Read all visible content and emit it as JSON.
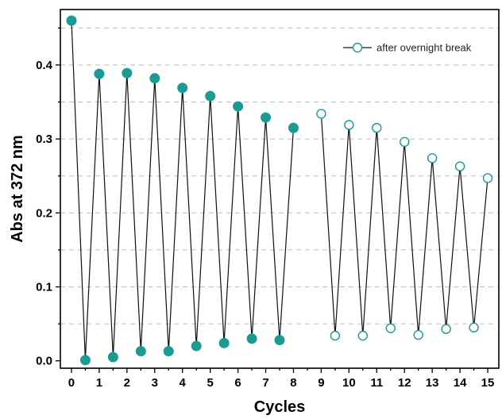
{
  "chart_data": {
    "type": "line",
    "xlabel": "Cycles",
    "ylabel": "Abs at 372 nm",
    "xlim": [
      -0.4,
      15.4
    ],
    "ylim": [
      -0.01,
      0.475
    ],
    "x_ticks": [
      0,
      1,
      2,
      3,
      4,
      5,
      6,
      7,
      8,
      9,
      10,
      11,
      12,
      13,
      14,
      15
    ],
    "y_ticks": [
      0.0,
      0.1,
      0.2,
      0.3,
      0.4
    ],
    "y_tick_labels": [
      "0.0",
      "0.1",
      "0.2",
      "0.3",
      "0.4"
    ],
    "grid": "horizontal dashed",
    "legend_position": "top-right",
    "colors": {
      "filled": "#1a9b93",
      "line": "#111111"
    },
    "series": [
      {
        "name": "",
        "marker": "filled-circle",
        "points": [
          [
            0,
            0.46
          ],
          [
            0.5,
            0.001
          ],
          [
            1,
            0.388
          ],
          [
            1.5,
            0.005
          ],
          [
            2,
            0.389
          ],
          [
            2.5,
            0.013
          ],
          [
            3,
            0.382
          ],
          [
            3.5,
            0.013
          ],
          [
            4,
            0.369
          ],
          [
            4.5,
            0.02
          ],
          [
            5,
            0.358
          ],
          [
            5.5,
            0.024
          ],
          [
            6,
            0.344
          ],
          [
            6.5,
            0.03
          ],
          [
            7,
            0.329
          ],
          [
            7.5,
            0.028
          ],
          [
            8,
            0.315
          ]
        ]
      },
      {
        "name": "after overnight break",
        "marker": "open-circle",
        "points": [
          [
            9,
            0.334
          ],
          [
            9.5,
            0.034
          ],
          [
            10,
            0.319
          ],
          [
            10.5,
            0.034
          ],
          [
            11,
            0.315
          ],
          [
            11.5,
            0.044
          ],
          [
            12,
            0.296
          ],
          [
            12.5,
            0.035
          ],
          [
            13,
            0.274
          ],
          [
            13.5,
            0.043
          ],
          [
            14,
            0.263
          ],
          [
            14.5,
            0.045
          ],
          [
            15,
            0.247
          ]
        ]
      }
    ]
  }
}
